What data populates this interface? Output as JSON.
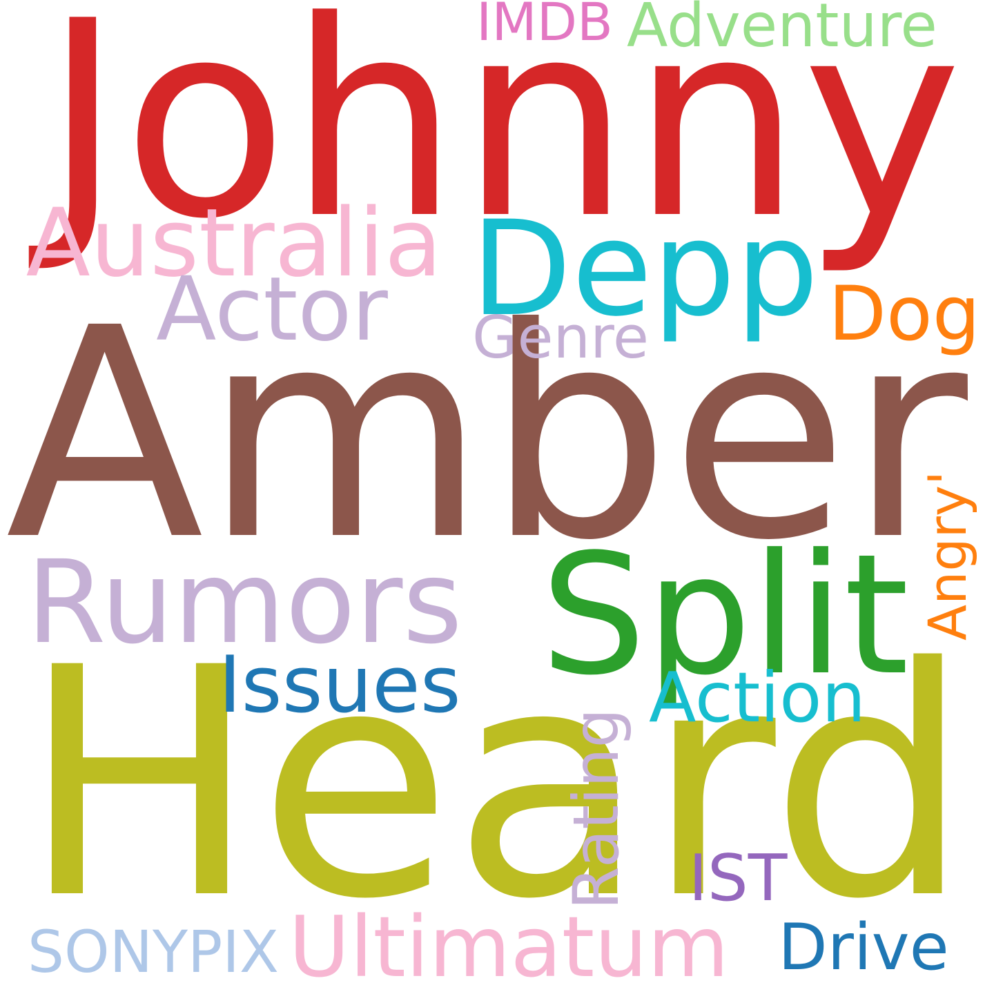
{
  "background": "#ffffff",
  "words": [
    {
      "id": "johnny",
      "text": "Johnny",
      "color": "#d62728",
      "orientation": "horizontal"
    },
    {
      "id": "amber",
      "text": "Amber",
      "color": "#8c564b",
      "orientation": "horizontal"
    },
    {
      "id": "heard",
      "text": "Heard",
      "color": "#bcbd22",
      "orientation": "horizontal"
    },
    {
      "id": "depp",
      "text": "Depp",
      "color": "#17becf",
      "orientation": "horizontal"
    },
    {
      "id": "split",
      "text": "Split",
      "color": "#2ca02c",
      "orientation": "horizontal"
    },
    {
      "id": "rumors",
      "text": "Rumors",
      "color": "#c5b0d5",
      "orientation": "horizontal"
    },
    {
      "id": "australia",
      "text": "Australia",
      "color": "#f7b6d2",
      "orientation": "horizontal"
    },
    {
      "id": "issues",
      "text": "Issues",
      "color": "#1f77b4",
      "orientation": "horizontal"
    },
    {
      "id": "actor",
      "text": "Actor",
      "color": "#c5b0d5",
      "orientation": "horizontal"
    },
    {
      "id": "ultimatum",
      "text": "Ultimatum",
      "color": "#f7b6d2",
      "orientation": "horizontal"
    },
    {
      "id": "dog",
      "text": "Dog",
      "color": "#ff7f0e",
      "orientation": "horizontal"
    },
    {
      "id": "angry",
      "text": "Angry'",
      "color": "#ff7f0e",
      "orientation": "vertical"
    },
    {
      "id": "action",
      "text": "Action",
      "color": "#17becf",
      "orientation": "horizontal"
    },
    {
      "id": "adventure",
      "text": "Adventure",
      "color": "#98df8a",
      "orientation": "horizontal"
    },
    {
      "id": "rating",
      "text": "Rating",
      "color": "#c5b0d5",
      "orientation": "vertical"
    },
    {
      "id": "drive",
      "text": "Drive",
      "color": "#1f77b4",
      "orientation": "horizontal"
    },
    {
      "id": "sonypix",
      "text": "SONYPIX",
      "color": "#aec7e8",
      "orientation": "horizontal"
    },
    {
      "id": "genre",
      "text": "Genre",
      "color": "#c5b0d5",
      "orientation": "horizontal"
    },
    {
      "id": "ist",
      "text": "IST",
      "color": "#9467bd",
      "orientation": "horizontal"
    },
    {
      "id": "imdb",
      "text": "IMDB",
      "color": "#e377c2",
      "orientation": "horizontal"
    }
  ]
}
